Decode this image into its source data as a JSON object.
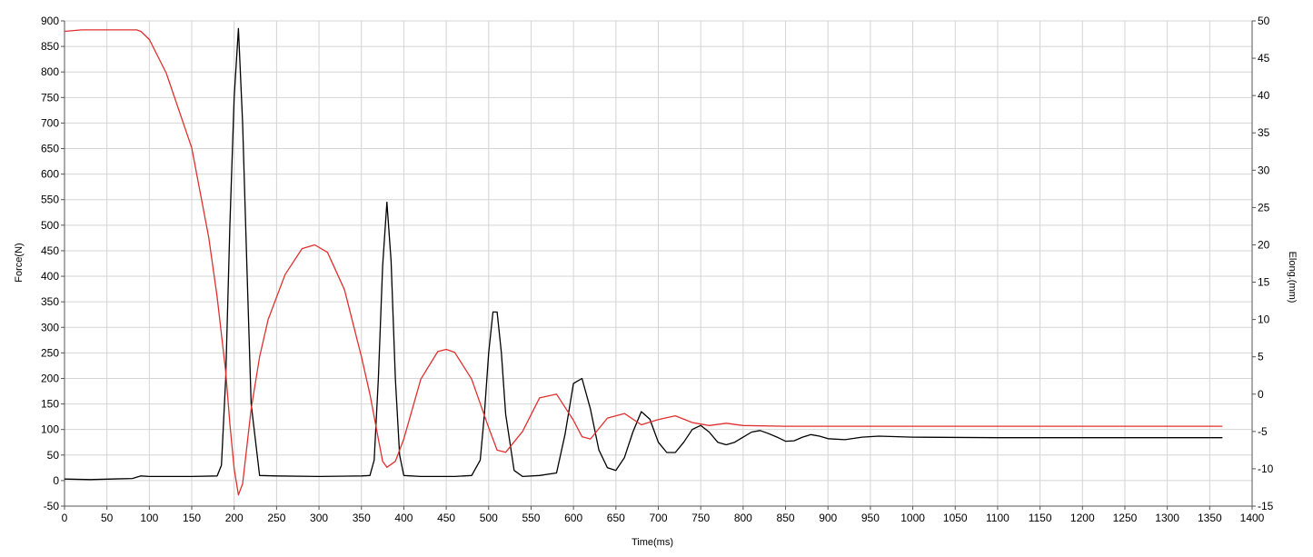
{
  "chart_data": {
    "type": "line",
    "xlabel": "Time(ms)",
    "ylabel_left": "Force(N)",
    "ylabel_right": "Elong.(mm)",
    "xlim": [
      0,
      1400
    ],
    "ylim_left": [
      -50,
      900
    ],
    "ylim_right": [
      -15,
      50
    ],
    "x_ticks": [
      0,
      50,
      100,
      150,
      200,
      250,
      300,
      350,
      400,
      450,
      500,
      550,
      600,
      650,
      700,
      750,
      800,
      850,
      900,
      950,
      1000,
      1050,
      1100,
      1150,
      1200,
      1250,
      1300,
      1350,
      1400
    ],
    "y_ticks_left": [
      -50,
      0,
      50,
      100,
      150,
      200,
      250,
      300,
      350,
      400,
      450,
      500,
      550,
      600,
      650,
      700,
      750,
      800,
      850,
      900
    ],
    "y_ticks_right": [
      -15,
      -10,
      -5,
      0,
      5,
      10,
      15,
      20,
      25,
      30,
      35,
      40,
      45,
      50
    ],
    "grid": true,
    "series": [
      {
        "axis": "left",
        "color": "#000000",
        "x": [
          0,
          30,
          80,
          90,
          100,
          150,
          180,
          185,
          190,
          195,
          200,
          205,
          210,
          215,
          220,
          230,
          250,
          300,
          350,
          360,
          365,
          370,
          375,
          380,
          385,
          390,
          395,
          400,
          420,
          460,
          480,
          490,
          495,
          500,
          505,
          510,
          515,
          520,
          530,
          540,
          560,
          580,
          590,
          600,
          610,
          620,
          630,
          640,
          650,
          660,
          670,
          680,
          690,
          700,
          710,
          720,
          730,
          740,
          750,
          760,
          770,
          780,
          790,
          800,
          810,
          820,
          830,
          840,
          850,
          860,
          870,
          880,
          890,
          900,
          920,
          940,
          960,
          1000,
          1100,
          1200,
          1300,
          1365
        ],
        "values": [
          3,
          2,
          4,
          9,
          8,
          8,
          9,
          30,
          200,
          500,
          750,
          885,
          700,
          420,
          150,
          10,
          9,
          8,
          9,
          10,
          40,
          200,
          420,
          545,
          430,
          200,
          50,
          10,
          8,
          8,
          10,
          40,
          130,
          250,
          330,
          330,
          250,
          130,
          20,
          8,
          10,
          15,
          90,
          190,
          200,
          140,
          60,
          25,
          20,
          45,
          95,
          135,
          120,
          75,
          55,
          55,
          75,
          100,
          108,
          95,
          75,
          70,
          75,
          85,
          95,
          98,
          92,
          85,
          77,
          78,
          85,
          90,
          87,
          82,
          80,
          85,
          87,
          85,
          84,
          84,
          84,
          84
        ]
      },
      {
        "axis": "right",
        "color": "#e03030",
        "x": [
          0,
          20,
          50,
          85,
          90,
          100,
          120,
          150,
          170,
          180,
          190,
          195,
          200,
          205,
          210,
          215,
          220,
          230,
          240,
          260,
          280,
          295,
          310,
          330,
          350,
          360,
          370,
          375,
          380,
          390,
          400,
          420,
          440,
          450,
          460,
          480,
          500,
          510,
          520,
          540,
          560,
          580,
          600,
          610,
          620,
          640,
          660,
          680,
          700,
          720,
          740,
          760,
          780,
          800,
          850,
          900,
          1000,
          1100,
          1200,
          1300,
          1365
        ],
        "values": [
          48.6,
          48.8,
          48.8,
          48.8,
          48.6,
          47.5,
          43,
          33,
          21,
          13,
          3,
          -4,
          -10,
          -13.5,
          -12,
          -7,
          -2,
          5,
          10,
          16,
          19.5,
          20,
          19,
          14,
          5,
          0,
          -6,
          -9,
          -9.8,
          -9,
          -6,
          2,
          5.7,
          6,
          5.6,
          2,
          -4.5,
          -7.5,
          -7.8,
          -5,
          -0.5,
          0,
          -3.5,
          -5.7,
          -6,
          -3.2,
          -2.6,
          -4.1,
          -3.4,
          -2.9,
          -3.8,
          -4.2,
          -3.9,
          -4.2,
          -4.3,
          -4.3,
          -4.3,
          -4.3,
          -4.3,
          -4.3,
          -4.3
        ]
      }
    ]
  }
}
